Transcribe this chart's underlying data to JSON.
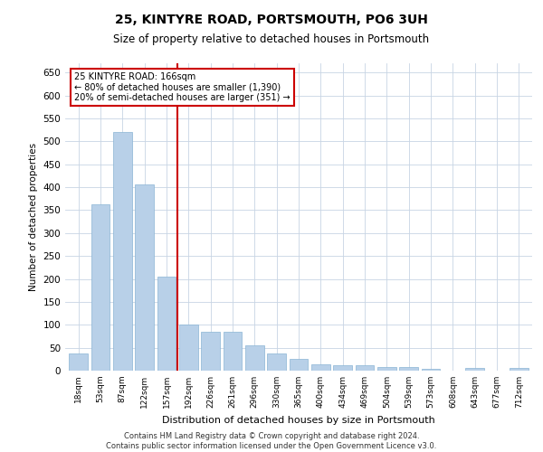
{
  "title": "25, KINTYRE ROAD, PORTSMOUTH, PO6 3UH",
  "subtitle": "Size of property relative to detached houses in Portsmouth",
  "xlabel": "Distribution of detached houses by size in Portsmouth",
  "ylabel": "Number of detached properties",
  "categories": [
    "18sqm",
    "53sqm",
    "87sqm",
    "122sqm",
    "157sqm",
    "192sqm",
    "226sqm",
    "261sqm",
    "296sqm",
    "330sqm",
    "365sqm",
    "400sqm",
    "434sqm",
    "469sqm",
    "504sqm",
    "539sqm",
    "573sqm",
    "608sqm",
    "643sqm",
    "677sqm",
    "712sqm"
  ],
  "values": [
    37,
    362,
    520,
    405,
    205,
    100,
    85,
    85,
    55,
    37,
    25,
    13,
    12,
    12,
    8,
    8,
    3,
    0,
    5,
    0,
    5
  ],
  "bar_color": "#b8d0e8",
  "bar_edge_color": "#8ab4d4",
  "vline_x": 4.5,
  "vline_color": "#cc0000",
  "annotation_title": "25 KINTYRE ROAD: 166sqm",
  "annotation_line2": "← 80% of detached houses are smaller (1,390)",
  "annotation_line3": "20% of semi-detached houses are larger (351) →",
  "annotation_box_color": "#cc0000",
  "annotation_bg": "#ffffff",
  "ylim": [
    0,
    670
  ],
  "yticks": [
    0,
    50,
    100,
    150,
    200,
    250,
    300,
    350,
    400,
    450,
    500,
    550,
    600,
    650
  ],
  "footer_line1": "Contains HM Land Registry data © Crown copyright and database right 2024.",
  "footer_line2": "Contains public sector information licensed under the Open Government Licence v3.0.",
  "bg_color": "#ffffff",
  "grid_color": "#c8d4e4"
}
